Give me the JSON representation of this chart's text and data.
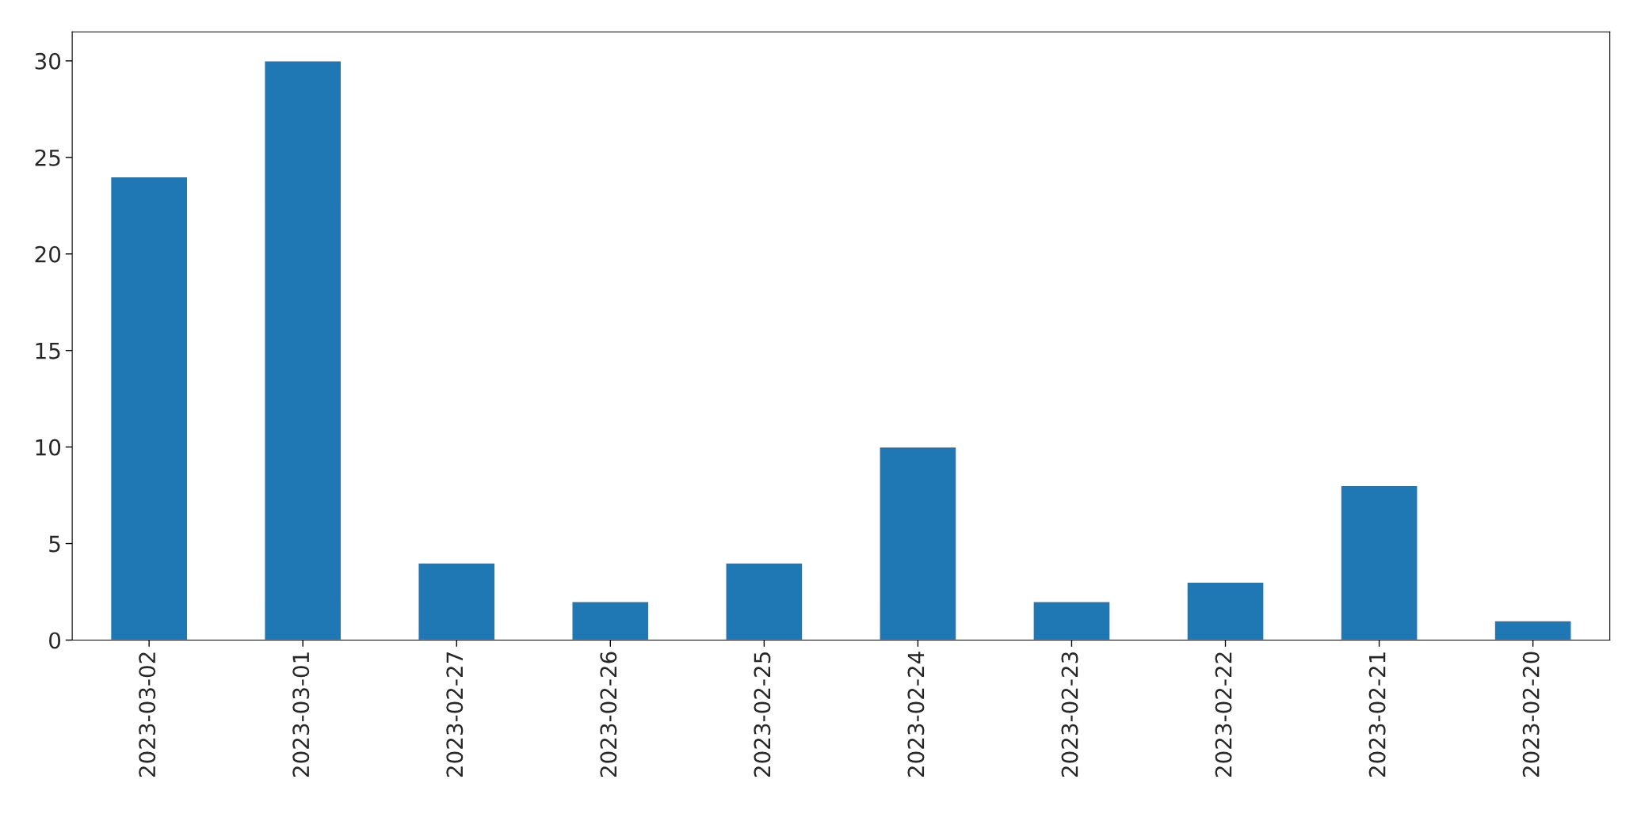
{
  "chart_data": {
    "type": "bar",
    "categories": [
      "2023-03-02",
      "2023-03-01",
      "2023-02-27",
      "2023-02-26",
      "2023-02-25",
      "2023-02-24",
      "2023-02-23",
      "2023-02-22",
      "2023-02-21",
      "2023-02-20"
    ],
    "values": [
      24,
      30,
      4,
      2,
      4,
      10,
      2,
      3,
      8,
      1
    ],
    "color": "#1f77b4",
    "ylim": [
      0,
      31.5
    ],
    "yticks": [
      0,
      5,
      10,
      15,
      20,
      25,
      30
    ],
    "grid": false,
    "legend": false
  }
}
